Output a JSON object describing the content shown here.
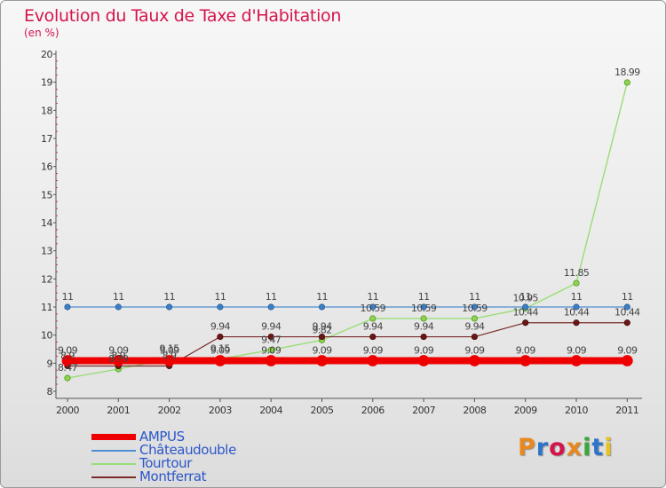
{
  "header": {
    "title": "Evolution du Taux de Taxe d'Habitation",
    "unit": "(en %)"
  },
  "logo": {
    "text": "Proxiti",
    "colors": [
      "#e8891f",
      "#2e74c9",
      "#d4144b",
      "#e8891f",
      "#38a838",
      "#2e74c9",
      "#e8c21f"
    ]
  },
  "chart_data": {
    "type": "line",
    "title": "Evolution du Taux de Taxe d'Habitation",
    "ylabel": "(en %)",
    "xlabel": "",
    "ylim": [
      8,
      20
    ],
    "yticks": [
      "8",
      "9",
      "10",
      "11",
      "12",
      "13",
      "14",
      "15",
      "16",
      "17",
      "18",
      "19",
      "20"
    ],
    "categories": [
      "2000",
      "2001",
      "2002",
      "2003",
      "2004",
      "2005",
      "2006",
      "2007",
      "2008",
      "2009",
      "2010",
      "2011"
    ],
    "grid": false,
    "legend_position": "bottom-left",
    "series": [
      {
        "name": "AMPUS",
        "color": "#ee0000",
        "values": [
          9.09,
          9.09,
          9.09,
          9.09,
          9.09,
          9.09,
          9.09,
          9.09,
          9.09,
          9.09,
          9.09,
          9.09
        ],
        "labels": [
          "9.09",
          "9.09",
          "9.09",
          "9.09",
          "9.09",
          "9.09",
          "9.09",
          "9.09",
          "9.09",
          "9.09",
          "9.09",
          "9.09"
        ]
      },
      {
        "name": "Châteaudouble",
        "color": "#4d8fd0",
        "values": [
          11,
          11,
          11,
          11,
          11,
          11,
          11,
          11,
          11,
          11,
          11,
          11
        ],
        "labels": [
          "11",
          "11",
          "11",
          "11",
          "11",
          "11",
          "11",
          "11",
          "11",
          "11",
          "11",
          "11"
        ]
      },
      {
        "name": "Tourtour",
        "color": "#99dd77",
        "values": [
          8.47,
          8.79,
          9.15,
          9.15,
          9.47,
          9.82,
          10.59,
          10.59,
          10.59,
          10.95,
          11.85,
          18.99
        ],
        "labels": [
          "8.47",
          "8.79",
          "9.15",
          "9.15",
          "9.47",
          "9.82",
          "10.59",
          "10.59",
          "10.59",
          "10.95",
          "11.85",
          "18.99"
        ]
      },
      {
        "name": "Montferrat",
        "color": "#7a2a2a",
        "values": [
          8.9,
          8.9,
          8.9,
          9.94,
          9.94,
          9.94,
          9.94,
          9.94,
          9.94,
          10.44,
          10.44,
          10.44
        ],
        "labels": [
          "8.9",
          "8.9",
          "8.9",
          "9.94",
          "9.94",
          "9.94",
          "9.94",
          "9.94",
          "9.94",
          "10.44",
          "10.44",
          "10.44"
        ]
      }
    ]
  }
}
